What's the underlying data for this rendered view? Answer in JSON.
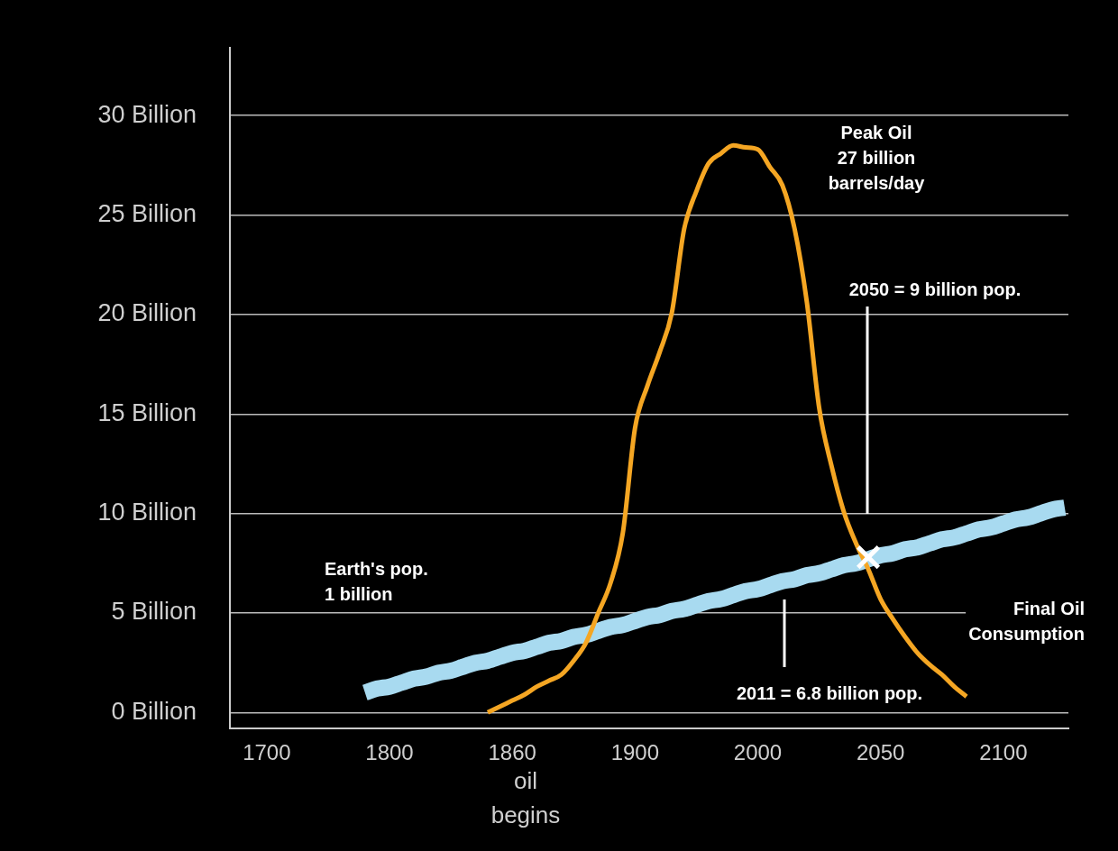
{
  "chart_data": {
    "type": "line",
    "categories": [
      "1700",
      null,
      null,
      null,
      null,
      null,
      null,
      null,
      null,
      null,
      "1800",
      null,
      null,
      null,
      null,
      null,
      null,
      null,
      null,
      null,
      "1860",
      null,
      null,
      null,
      null,
      null,
      null,
      null,
      null,
      null,
      "1900",
      null,
      null,
      null,
      null,
      null,
      null,
      null,
      null,
      null,
      "2000",
      null,
      null,
      null,
      null,
      null,
      null,
      null,
      null,
      null,
      "2050",
      null,
      null,
      null,
      null,
      null,
      null,
      null,
      null,
      null,
      "2100",
      null,
      null,
      null,
      null,
      null
    ],
    "ylim": [
      -0.8,
      33.4
    ],
    "yticks": [
      {
        "value": 0,
        "label": "0 Billion"
      },
      {
        "value": 5,
        "label": "5 Billion"
      },
      {
        "value": 10,
        "label": "10 Billion"
      },
      {
        "value": 15,
        "label": "15 Billion"
      },
      {
        "value": 20,
        "label": "20 Billion"
      },
      {
        "value": 25,
        "label": "25 Billion"
      },
      {
        "value": 30,
        "label": "30 Billion"
      }
    ],
    "grid": "y",
    "legend": false,
    "marker": "none",
    "line_style": "solid",
    "series": [
      {
        "color": "#a8daf0",
        "values": [
          null,
          null,
          null,
          null,
          null,
          null,
          null,
          null,
          1.0,
          1.2,
          1.3,
          1.5,
          1.7,
          1.8,
          2.0,
          2.1,
          2.3,
          2.5,
          2.6,
          2.8,
          3.0,
          3.1,
          3.3,
          3.5,
          3.6,
          3.8,
          3.9,
          4.1,
          4.3,
          4.4,
          4.6,
          4.8,
          4.9,
          5.1,
          5.2,
          5.4,
          5.6,
          5.7,
          5.9,
          6.1,
          6.2,
          6.4,
          6.6,
          6.7,
          6.9,
          7.0,
          7.2,
          7.4,
          7.5,
          7.7,
          7.9,
          8.0,
          8.2,
          8.3,
          8.5,
          8.7,
          8.8,
          9.0,
          9.2,
          9.3,
          9.5,
          9.7,
          9.8,
          10.0,
          10.2,
          10.3
        ]
      },
      {
        "color": "#f5a623",
        "values": [
          null,
          null,
          null,
          null,
          null,
          null,
          null,
          null,
          null,
          null,
          null,
          null,
          null,
          null,
          null,
          null,
          null,
          null,
          0.0,
          0.3,
          0.6,
          0.9,
          1.3,
          1.6,
          1.9,
          2.6,
          3.5,
          5.0,
          6.5,
          9.0,
          14.3,
          16.4,
          18.1,
          20.1,
          24.3,
          26.2,
          27.6,
          28.1,
          28.5,
          28.4,
          28.3,
          27.4,
          26.5,
          24.3,
          20.6,
          15.3,
          12.4,
          10.1,
          8.5,
          7.2,
          5.7,
          4.7,
          3.8,
          3.0,
          2.4,
          1.9,
          1.3,
          0.8,
          null,
          null,
          null,
          null,
          null,
          null,
          null,
          null
        ]
      },
      {
        "type": "scatter",
        "color": "#ffffff",
        "marker": "cross",
        "values": [
          null,
          null,
          null,
          null,
          null,
          null,
          null,
          null,
          null,
          null,
          null,
          null,
          null,
          null,
          null,
          null,
          null,
          null,
          null,
          null,
          null,
          null,
          null,
          null,
          null,
          null,
          null,
          null,
          null,
          null,
          null,
          null,
          null,
          null,
          null,
          null,
          null,
          null,
          null,
          null,
          null,
          null,
          null,
          null,
          null,
          null,
          null,
          null,
          null,
          7.8,
          null,
          null,
          null,
          null,
          null,
          null,
          null,
          null,
          null,
          null,
          null,
          null,
          null,
          null,
          null,
          null
        ]
      }
    ],
    "annotations": [
      "Peak Oil\n27 billion\nbarrels/day",
      "2050 = 9 billion pop.",
      "2011 = 6.8 billion pop.",
      "Earth's pop.\n1 billion",
      "Final Oil\nConsumption",
      "oil\nbegins"
    ]
  }
}
